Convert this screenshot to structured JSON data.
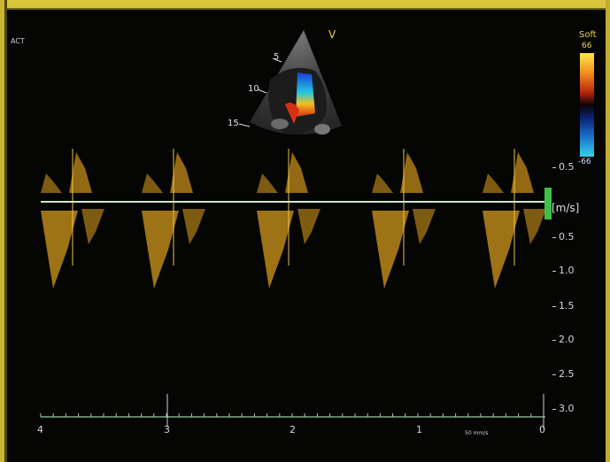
{
  "top_left_label": "ACT",
  "sector": {
    "marker": "V",
    "depth_labels": [
      "5",
      "10",
      "15"
    ]
  },
  "color_bar": {
    "label": "Soft",
    "top_value": "66",
    "bottom_value": "-66",
    "colors": [
      "#ffe84a",
      "#d93a14",
      "#200000",
      "#0a1f70",
      "#34d2e8"
    ]
  },
  "doppler": {
    "velocity_unit": "[m/s]",
    "y_ticks": [
      "0.5",
      "0.5",
      "1.0",
      "1.5",
      "2.0",
      "2.5",
      "3.0"
    ],
    "time_ticks": [
      "4",
      "3",
      "2",
      "1",
      "0"
    ],
    "sweep_speed": "50 mm/s",
    "spectrum_color": "#e0a21c",
    "baseline_color": "#cfe8cf"
  }
}
